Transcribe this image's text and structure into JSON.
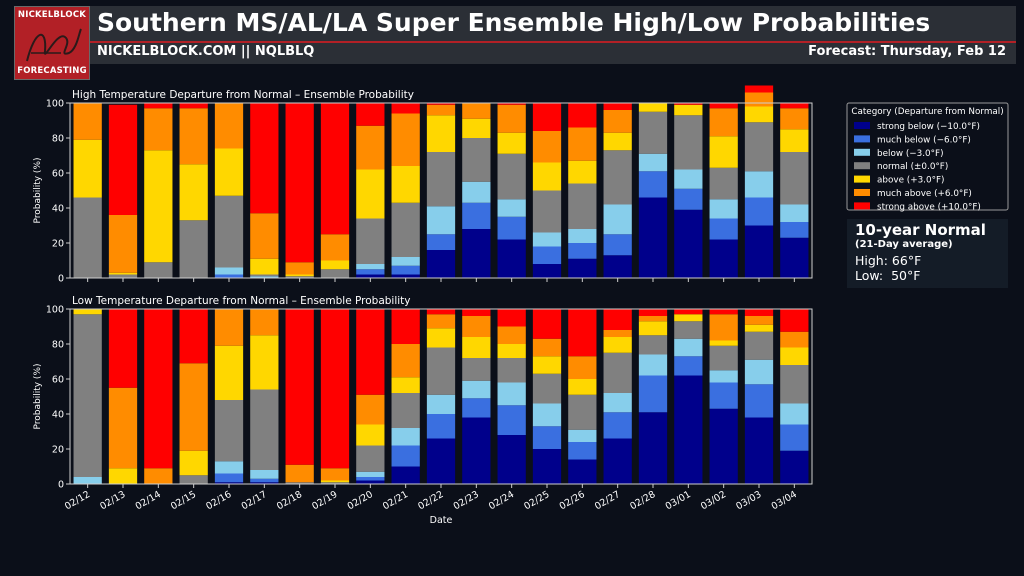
{
  "header": {
    "title": "Southern MS/AL/LA Super Ensemble High/Low Probabilities",
    "subtitle": "NICKELBLOCK.COM || NQLBLQ",
    "forecast": "Forecast: Thursday, Feb 12",
    "logo_top": "NICKELBLOCK",
    "logo_bottom": "FORECASTING"
  },
  "normals": {
    "title": "10-year Normal",
    "subtitle": "(21-Day average)",
    "high": "High: 66°F",
    "low": "Low:  50°F"
  },
  "colors": {
    "background": "#0b0f19",
    "header": "#2b2f36",
    "accent": "#b22026",
    "categories": [
      "#00008b",
      "#3a6fe0",
      "#87ceeb",
      "#808080",
      "#ffd700",
      "#ff8c00",
      "#ff0000"
    ]
  },
  "chart_data": {
    "type": "bar",
    "stacked": true,
    "dates": [
      "02/12",
      "02/13",
      "02/14",
      "02/15",
      "02/16",
      "02/17",
      "02/18",
      "02/19",
      "02/20",
      "02/21",
      "02/22",
      "02/23",
      "02/24",
      "02/25",
      "02/26",
      "02/27",
      "02/28",
      "03/01",
      "03/02",
      "03/03",
      "03/04"
    ],
    "xlabel": "Date",
    "ylabel": "Probability (%)",
    "ylim": [
      0,
      100
    ],
    "yticks": [
      0,
      20,
      40,
      60,
      80,
      100
    ],
    "legend": {
      "title": "Category (Departure from Normal)",
      "labels": [
        "strong below (−10.0°F)",
        "much below (−6.0°F)",
        "below (−3.0°F)",
        "normal (±0.0°F)",
        "above (+3.0°F)",
        "much above (+6.0°F)",
        "strong above (+10.0°F)"
      ],
      "placement": "right"
    },
    "panels": [
      {
        "title": "High Temperature Departure from Normal – Ensemble Probability",
        "series": [
          {
            "name": "strong below (−10.0°F)",
            "values": [
              0,
              0,
              0,
              0,
              0,
              0,
              0,
              0,
              2,
              2,
              16,
              28,
              22,
              8,
              11,
              13,
              46,
              39,
              22,
              30,
              23
            ]
          },
          {
            "name": "much below (−6.0°F)",
            "values": [
              0,
              0,
              0,
              0,
              2,
              0,
              0,
              0,
              3,
              5,
              9,
              15,
              13,
              10,
              9,
              12,
              15,
              12,
              12,
              16,
              9
            ]
          },
          {
            "name": "below (−3.0°F)",
            "values": [
              0,
              0,
              0,
              0,
              4,
              1,
              0,
              0,
              3,
              5,
              16,
              12,
              10,
              8,
              8,
              17,
              10,
              11,
              11,
              15,
              10
            ]
          },
          {
            "name": "normal (±0.0°F)",
            "values": [
              46,
              2,
              9,
              33,
              41,
              1,
              1,
              5,
              26,
              31,
              31,
              25,
              26,
              24,
              26,
              31,
              24,
              31,
              18,
              28,
              30
            ]
          },
          {
            "name": "above (+3.0°F)",
            "values": [
              33,
              1,
              64,
              32,
              27,
              9,
              1,
              5,
              28,
              21,
              21,
              11,
              12,
              16,
              13,
              10,
              5,
              6,
              18,
              9,
              13
            ]
          },
          {
            "name": "much above (+6.0°F)",
            "values": [
              21,
              33,
              24,
              32,
              26,
              26,
              7,
              15,
              25,
              30,
              6,
              9,
              16,
              18,
              19,
              13,
              0,
              0,
              16,
              8,
              12
            ]
          },
          {
            "name": "strong above (+10.0°F)",
            "values": [
              0,
              63,
              3,
              3,
              0,
              63,
              91,
              75,
              13,
              6,
              1,
              0,
              1,
              16,
              14,
              4,
              0,
              1,
              3,
              4,
              3
            ]
          }
        ]
      },
      {
        "title": "Low Temperature Departure from Normal – Ensemble Probability",
        "series": [
          {
            "name": "strong below (−10.0°F)",
            "values": [
              0,
              0,
              0,
              0,
              1,
              1,
              0,
              0,
              2,
              10,
              26,
              38,
              28,
              20,
              14,
              26,
              41,
              62,
              43,
              38,
              19
            ]
          },
          {
            "name": "much below (−6.0°F)",
            "values": [
              0,
              0,
              0,
              0,
              5,
              2,
              0,
              0,
              2,
              12,
              14,
              11,
              17,
              13,
              10,
              15,
              21,
              11,
              15,
              19,
              15
            ]
          },
          {
            "name": "below (−3.0°F)",
            "values": [
              4,
              0,
              0,
              0,
              7,
              5,
              0,
              0,
              3,
              10,
              11,
              10,
              13,
              13,
              7,
              11,
              12,
              10,
              7,
              14,
              12
            ]
          },
          {
            "name": "normal (±0.0°F)",
            "values": [
              93,
              0,
              0,
              5,
              35,
              46,
              1,
              1,
              15,
              20,
              27,
              13,
              14,
              17,
              20,
              23,
              11,
              10,
              14,
              16,
              22
            ]
          },
          {
            "name": "above (+3.0°F)",
            "values": [
              3,
              9,
              0,
              14,
              31,
              31,
              0,
              1,
              12,
              9,
              11,
              12,
              8,
              10,
              9,
              9,
              8,
              4,
              3,
              4,
              10
            ]
          },
          {
            "name": "much above (+6.0°F)",
            "values": [
              0,
              46,
              9,
              50,
              21,
              15,
              10,
              7,
              17,
              19,
              8,
              12,
              10,
              10,
              13,
              4,
              3,
              0,
              15,
              5,
              9
            ]
          },
          {
            "name": "strong above (+10.0°F)",
            "values": [
              0,
              45,
              91,
              31,
              0,
              0,
              89,
              91,
              49,
              20,
              3,
              4,
              10,
              17,
              27,
              12,
              4,
              3,
              3,
              4,
              13
            ]
          }
        ]
      }
    ]
  }
}
